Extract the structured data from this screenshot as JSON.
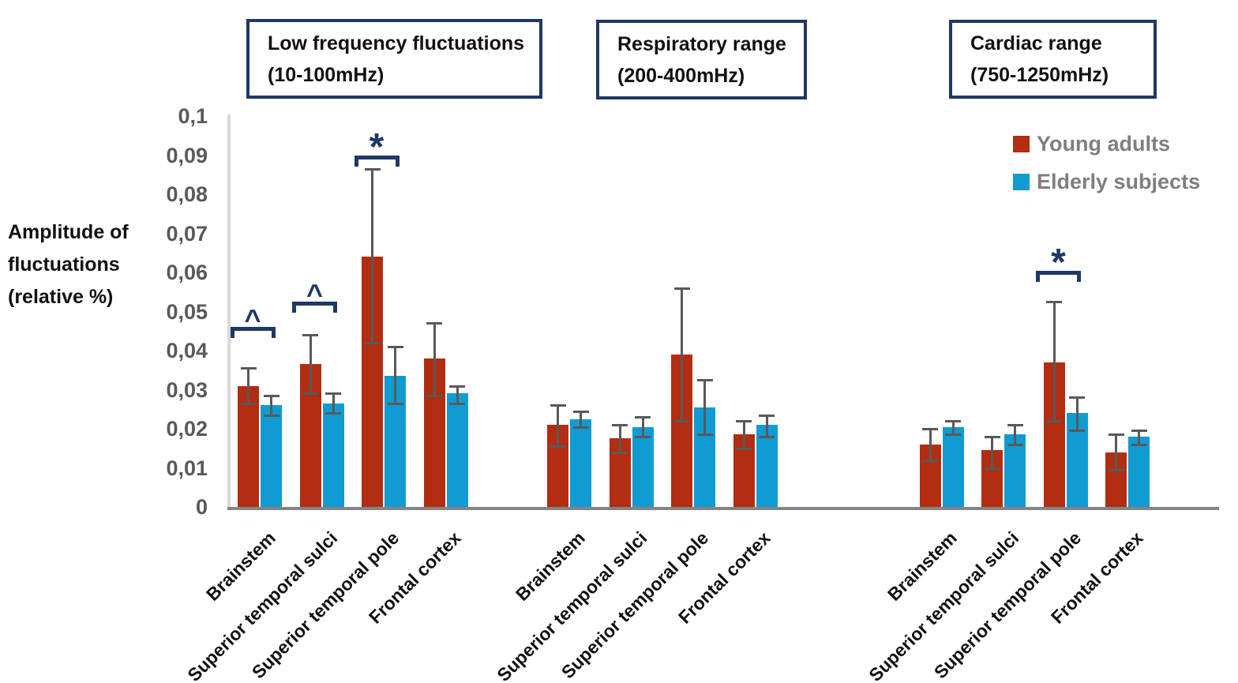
{
  "chart_data": {
    "type": "bar",
    "ylabel_lines": [
      "Amplitude of",
      "fluctuations",
      "(relative %)"
    ],
    "y_axis": {
      "min": 0,
      "max": 0.1,
      "tick_step": 0.01,
      "decimal_separator": ",",
      "tick_labels": [
        "0",
        "0,01",
        "0,02",
        "0,03",
        "0,04",
        "0,05",
        "0,06",
        "0,07",
        "0,08",
        "0,09",
        "0,1"
      ]
    },
    "categories": [
      "Brainstem",
      "Superior temporal sulci",
      "Superior temporal pole",
      "Frontal cortex"
    ],
    "series": [
      {
        "name": "Young adults",
        "color": "#B22D11"
      },
      {
        "name": "Elderly subjects",
        "color": "#119BD3"
      }
    ],
    "legend_position": "top-right",
    "grid": false,
    "panels": [
      {
        "title": "Low frequency fluctuations",
        "range": "(10-100mHz)",
        "groups": [
          {
            "category": "Brainstem",
            "young_adults": {
              "value": 0.031,
              "err_low": 0.0265,
              "err_high": 0.0355
            },
            "elderly_subjects": {
              "value": 0.026,
              "err_low": 0.0235,
              "err_high": 0.0285
            }
          },
          {
            "category": "Superior temporal sulci",
            "young_adults": {
              "value": 0.0365,
              "err_low": 0.029,
              "err_high": 0.044
            },
            "elderly_subjects": {
              "value": 0.0265,
              "err_low": 0.024,
              "err_high": 0.029
            }
          },
          {
            "category": "Superior temporal pole",
            "young_adults": {
              "value": 0.064,
              "err_low": 0.042,
              "err_high": 0.0865
            },
            "elderly_subjects": {
              "value": 0.0335,
              "err_low": 0.0265,
              "err_high": 0.041
            }
          },
          {
            "category": "Frontal cortex",
            "young_adults": {
              "value": 0.038,
              "err_low": 0.0285,
              "err_high": 0.047
            },
            "elderly_subjects": {
              "value": 0.029,
              "err_low": 0.0265,
              "err_high": 0.031
            }
          }
        ]
      },
      {
        "title": "Respiratory range",
        "range": "(200-400mHz)",
        "groups": [
          {
            "category": "Brainstem",
            "young_adults": {
              "value": 0.021,
              "err_low": 0.0155,
              "err_high": 0.026
            },
            "elderly_subjects": {
              "value": 0.0225,
              "err_low": 0.0205,
              "err_high": 0.0245
            }
          },
          {
            "category": "Superior temporal sulci",
            "young_adults": {
              "value": 0.0175,
              "err_low": 0.014,
              "err_high": 0.021
            },
            "elderly_subjects": {
              "value": 0.0205,
              "err_low": 0.018,
              "err_high": 0.023
            }
          },
          {
            "category": "Superior temporal pole",
            "young_adults": {
              "value": 0.039,
              "err_low": 0.022,
              "err_high": 0.056
            },
            "elderly_subjects": {
              "value": 0.0255,
              "err_low": 0.0185,
              "err_high": 0.0325
            }
          },
          {
            "category": "Frontal cortex",
            "young_adults": {
              "value": 0.0185,
              "err_low": 0.015,
              "err_high": 0.022
            },
            "elderly_subjects": {
              "value": 0.021,
              "err_low": 0.018,
              "err_high": 0.0235
            }
          }
        ]
      },
      {
        "title": "Cardiac range",
        "range": "(750-1250mHz)",
        "groups": [
          {
            "category": "Brainstem",
            "young_adults": {
              "value": 0.016,
              "err_low": 0.012,
              "err_high": 0.02
            },
            "elderly_subjects": {
              "value": 0.0205,
              "err_low": 0.0185,
              "err_high": 0.022
            }
          },
          {
            "category": "Superior temporal sulci",
            "young_adults": {
              "value": 0.0145,
              "err_low": 0.01,
              "err_high": 0.018
            },
            "elderly_subjects": {
              "value": 0.0185,
              "err_low": 0.016,
              "err_high": 0.021
            }
          },
          {
            "category": "Superior temporal pole",
            "young_adults": {
              "value": 0.037,
              "err_low": 0.022,
              "err_high": 0.0525
            },
            "elderly_subjects": {
              "value": 0.024,
              "err_low": 0.0195,
              "err_high": 0.028
            }
          },
          {
            "category": "Frontal cortex",
            "young_adults": {
              "value": 0.014,
              "err_low": 0.0095,
              "err_high": 0.0185
            },
            "elderly_subjects": {
              "value": 0.018,
              "err_low": 0.016,
              "err_high": 0.0195
            }
          }
        ]
      }
    ],
    "annotations": [
      {
        "panel": 0,
        "category": "Brainstem",
        "symbol": "^",
        "height": 0.046
      },
      {
        "panel": 0,
        "category": "Superior temporal sulci",
        "symbol": "^",
        "height": 0.0525
      },
      {
        "panel": 0,
        "category": "Superior temporal pole",
        "symbol": "*",
        "height": 0.09
      },
      {
        "panel": 2,
        "category": "Superior temporal pole",
        "symbol": "*",
        "height": 0.0604
      }
    ],
    "colors": {
      "annotation": "#1F3864",
      "box_border": "#1F3864",
      "axis_line": "#D9D9D9",
      "baseline": "#848484",
      "error_bar": "#595959",
      "tick_text": "#595959",
      "legend_text": "#7F7F7F"
    }
  }
}
